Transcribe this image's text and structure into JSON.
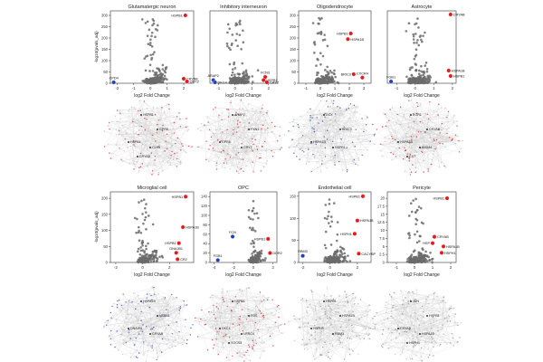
{
  "figure": {
    "description_label": "Volcano plots and gene networks by cell type"
  },
  "chart_data": [
    {
      "type": "scatter",
      "title": "Glutamatergic neuron",
      "xlabel": "log2 Fold Change",
      "ylabel": "-log10(pvals_adj)",
      "xlim": [
        -2.4,
        2.6
      ],
      "ylim": [
        0,
        320
      ],
      "xticks": [
        -2,
        -1,
        0,
        1,
        2
      ],
      "yticks": [
        0,
        50,
        100,
        150,
        200,
        250,
        300
      ],
      "labeled_points": [
        {
          "gene": "HSPB1",
          "x": 2.1,
          "y": 300,
          "color": "#e41a1c",
          "label_side": "left"
        },
        {
          "gene": "CRYAB",
          "x": 2.0,
          "y": 20,
          "color": "#e41a1c",
          "label_side": "right"
        },
        {
          "gene": "CRYZ",
          "x": 2.2,
          "y": 8,
          "color": "#e41a1c",
          "label_side": "right"
        },
        {
          "gene": "CPD4",
          "x": -2.2,
          "y": 4,
          "color": "#1f3fbf",
          "label_side": "above"
        }
      ]
    },
    {
      "type": "scatter",
      "title": "Inhibitory interneuron",
      "xlabel": "log2 Fold Change",
      "ylabel": "",
      "xlim": [
        -1.5,
        2.5
      ],
      "ylim": [
        0,
        230
      ],
      "xticks": [
        -1,
        0,
        1,
        2
      ],
      "yticks": [],
      "labeled_points": [
        {
          "gene": "FCN3",
          "x": 1.8,
          "y": 20,
          "color": "#e41a1c",
          "label_side": "above"
        },
        {
          "gene": "HSPB1",
          "x": 1.7,
          "y": 10,
          "color": "#e41a1c",
          "label_side": "right"
        },
        {
          "gene": "CRYZ",
          "x": 1.9,
          "y": 3,
          "color": "#e41a1c",
          "label_side": "right"
        },
        {
          "gene": "ARAP2",
          "x": -1.3,
          "y": 10,
          "color": "#1f3fbf",
          "label_side": "above"
        },
        {
          "gene": "DKC4",
          "x": -1.2,
          "y": 3,
          "color": "#1f3fbf",
          "label_side": "right"
        }
      ]
    },
    {
      "type": "scatter",
      "title": "Oligodendrocyte",
      "xlabel": "log2 Fold Change",
      "ylabel": "",
      "xlim": [
        -1.5,
        3.5
      ],
      "ylim": [
        0,
        320
      ],
      "xticks": [
        -1,
        0,
        1,
        2,
        3
      ],
      "yticks": [
        0,
        50,
        100,
        150,
        200,
        250,
        300
      ],
      "labeled_points": [
        {
          "gene": "HSPA1B",
          "x": 1.9,
          "y": 195,
          "color": "#e41a1c",
          "label_side": "right"
        },
        {
          "gene": "HSPB1",
          "x": 2.1,
          "y": 220,
          "color": "#e41a1c",
          "label_side": "left"
        },
        {
          "gene": "BRIC3",
          "x": 2.3,
          "y": 40,
          "color": "#e41a1c",
          "label_side": "left"
        },
        {
          "gene": "CXCR4",
          "x": 2.9,
          "y": 25,
          "color": "#e41a1c",
          "label_side": "above"
        }
      ]
    },
    {
      "type": "scatter",
      "title": "Astrocyte",
      "xlabel": "log2 Fold Change",
      "ylabel": "",
      "xlim": [
        -1.5,
        2.2
      ],
      "ylim": [
        0,
        200
      ],
      "xticks": [
        -1,
        0,
        1,
        2
      ],
      "yticks": [],
      "labeled_points": [
        {
          "gene": "CRYAB",
          "x": 1.9,
          "y": 190,
          "color": "#e41a1c",
          "label_side": "right"
        },
        {
          "gene": "HSPA1B",
          "x": 1.8,
          "y": 35,
          "color": "#e41a1c",
          "label_side": "right"
        },
        {
          "gene": "HSPB1",
          "x": 1.9,
          "y": 20,
          "color": "#e41a1c",
          "label_side": "right"
        },
        {
          "gene": "FGB1",
          "x": -1.3,
          "y": 5,
          "color": "#1f3fbf",
          "label_side": "above"
        }
      ]
    },
    {
      "type": "scatter",
      "title": "Microglial cell",
      "xlabel": "log2 Fold Change",
      "ylabel": "-log10(pvals_adj)",
      "xlim": [
        -2.4,
        3.8
      ],
      "ylim": [
        0,
        220
      ],
      "xticks": [
        -2,
        0,
        2
      ],
      "yticks": [
        0,
        50,
        100,
        150,
        200
      ],
      "labeled_points": [
        {
          "gene": "HSPB1",
          "x": 3.2,
          "y": 205,
          "color": "#e41a1c",
          "label_side": "left"
        },
        {
          "gene": "HSPA1B",
          "x": 3.0,
          "y": 110,
          "color": "#e41a1c",
          "label_side": "right"
        },
        {
          "gene": "HSPB1",
          "x": 2.7,
          "y": 60,
          "color": "#e41a1c",
          "label_side": "left"
        },
        {
          "gene": "DNAJB1",
          "x": 2.5,
          "y": 30,
          "color": "#e41a1c",
          "label_side": "above"
        },
        {
          "gene": "CR2",
          "x": 2.6,
          "y": 10,
          "color": "#e41a1c",
          "label_side": "right"
        }
      ]
    },
    {
      "type": "scatter",
      "title": "OPC",
      "xlabel": "log2 Fold Change",
      "ylabel": "",
      "xlim": [
        -4.4,
        2.4
      ],
      "ylim": [
        0,
        150
      ],
      "xticks": [
        -4,
        -2,
        0,
        2
      ],
      "yticks": [
        0,
        20,
        40,
        60,
        80,
        100,
        120,
        140
      ],
      "labeled_points": [
        {
          "gene": "FCN",
          "x": -2.1,
          "y": 55,
          "color": "#1f3fbf",
          "label_side": "above"
        },
        {
          "gene": "FGB1",
          "x": -3.6,
          "y": 5,
          "color": "#1f3fbf",
          "label_side": "above"
        },
        {
          "gene": "HSPB1",
          "x": 1.5,
          "y": 50,
          "color": "#e41a1c",
          "label_side": "left"
        },
        {
          "gene": "DDR2",
          "x": 1.7,
          "y": 20,
          "color": "#e41a1c",
          "label_side": "right"
        }
      ]
    },
    {
      "type": "scatter",
      "title": "Endothelial cell",
      "xlabel": "log2 Fold Change",
      "ylabel": "",
      "xlim": [
        -2.3,
        3.0
      ],
      "ylim": [
        0,
        160
      ],
      "xticks": [
        -2,
        0,
        2
      ],
      "yticks": [
        0,
        50,
        100,
        150
      ],
      "labeled_points": [
        {
          "gene": "HSPB1",
          "x": 2.4,
          "y": 150,
          "color": "#e41a1c",
          "label_side": "left"
        },
        {
          "gene": "HSPA1B",
          "x": 2.0,
          "y": 95,
          "color": "#e41a1c",
          "label_side": "right"
        },
        {
          "gene": "HSPH1",
          "x": 1.8,
          "y": 65,
          "color": "#e41a1c",
          "label_side": "left"
        },
        {
          "gene": "CACYBP",
          "x": 2.1,
          "y": 20,
          "color": "#e41a1c",
          "label_side": "right"
        },
        {
          "gene": "RBM3",
          "x": -2.0,
          "y": 15,
          "color": "#1f3fbf",
          "label_side": "above"
        }
      ]
    },
    {
      "type": "scatter",
      "title": "Pericyte",
      "xlabel": "log2 Fold Change",
      "ylabel": "",
      "xlim": [
        -1.5,
        2.3
      ],
      "ylim": [
        0,
        22
      ],
      "xticks": [
        -1,
        0,
        1,
        2
      ],
      "yticks": [
        0,
        2.5,
        5,
        7.5,
        10,
        12.5,
        15,
        17.5,
        20
      ],
      "labeled_points": [
        {
          "gene": "HSPB1",
          "x": 1.8,
          "y": 20,
          "color": "#e41a1c",
          "label_side": "left"
        },
        {
          "gene": "CRYAB",
          "x": 1.1,
          "y": 8,
          "color": "#e41a1c",
          "label_side": "right"
        },
        {
          "gene": "HSP",
          "x": 1.0,
          "y": 6,
          "color": "#e41a1c",
          "label_side": "left"
        },
        {
          "gene": "HSPA1B",
          "x": 1.6,
          "y": 5,
          "color": "#e41a1c",
          "label_side": "right"
        },
        {
          "gene": "HSPH1",
          "x": 1.5,
          "y": 3,
          "color": "#e41a1c",
          "label_side": "right"
        }
      ]
    }
  ],
  "networks": [
    {
      "panel": "Glutamatergic neuron",
      "dominant_color": "#e41a1c",
      "labels": [
        "HSPB1",
        "GPR6",
        "HSPA4",
        "CLE3",
        "CRYAB"
      ]
    },
    {
      "panel": "Inhibitory interneuron",
      "dominant_color": "#e41a1c",
      "labels": [
        "ARAP2",
        "FXN1",
        "GPR6",
        "CRYZ"
      ]
    },
    {
      "panel": "Oligodendrocyte",
      "dominant_color": "#1f3fbf",
      "labels": [
        "DCX",
        "BRIC3",
        "HSPA1B",
        "HSPB1"
      ]
    },
    {
      "panel": "Astrocyte",
      "dominant_color": "#e41a1c",
      "labels": [
        "EGR1",
        "CRYAB",
        "HSPA1B",
        "ANXA1",
        "CST"
      ]
    },
    {
      "panel": "Microglial cell",
      "dominant_color": "#1f3fbf",
      "labels": [
        "HSPA1B",
        "HSPB1",
        "DNAJB1",
        "CRYAB"
      ]
    },
    {
      "panel": "OPC",
      "dominant_color": "#e41a1c",
      "labels": [
        "HSPB1",
        "FOS",
        "DKC1",
        "LRRC4",
        "SOCS3"
      ]
    },
    {
      "panel": "Endothelial cell",
      "dominant_color": "#888888",
      "labels": [
        "HSPB1",
        "HSPA1B",
        "HSPH1",
        "RBM3"
      ]
    },
    {
      "panel": "Pericyte",
      "dominant_color": "#888888",
      "labels": [
        "JUN",
        "HSPB1",
        "CRYAB",
        "HSPA1B",
        "HSPH1"
      ]
    }
  ]
}
